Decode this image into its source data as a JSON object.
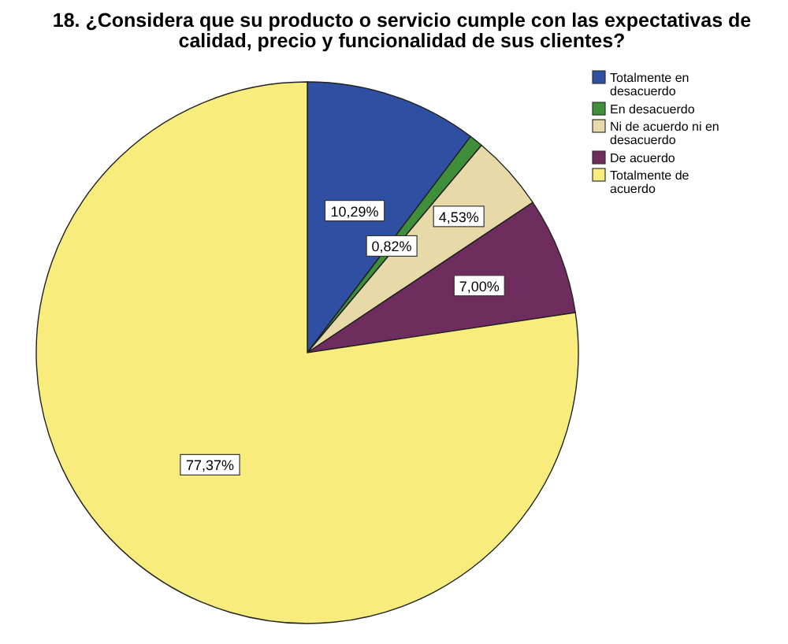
{
  "chart_data": {
    "type": "pie",
    "title": "18. ¿Considera que su producto o servicio cumple con las expectativas de\ncalidad, precio y funcionalidad de sus clientes?",
    "categories": [
      "Totalmente en desacuerdo",
      "En desacuerdo",
      "Ni de acuerdo ni en desacuerdo",
      "De acuerdo",
      "Totalmente de acuerdo"
    ],
    "values": [
      10.29,
      0.82,
      4.53,
      7.0,
      77.37
    ],
    "value_labels": [
      "10,29%",
      "0,82%",
      "4,53%",
      "7,00%",
      "77,37%"
    ],
    "colors": [
      "#2f4fa2",
      "#3f8f3a",
      "#e8d9a8",
      "#6e2c5f",
      "#f7ec7c"
    ],
    "legend": "top right"
  }
}
